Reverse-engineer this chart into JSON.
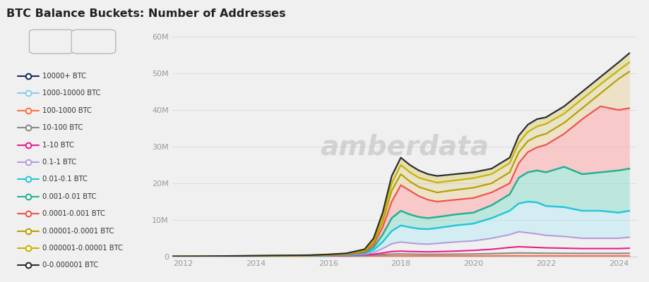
{
  "title": "BTC Balance Buckets: Number of Addresses",
  "background_color": "#f0f0f0",
  "years": [
    2011.5,
    2012,
    2012.5,
    2013,
    2013.5,
    2014,
    2014.5,
    2015,
    2015.5,
    2016,
    2016.5,
    2017,
    2017.25,
    2017.5,
    2017.75,
    2018.0,
    2018.25,
    2018.5,
    2018.75,
    2019,
    2019.5,
    2020,
    2020.5,
    2021,
    2021.25,
    2021.5,
    2021.75,
    2022,
    2022.5,
    2023,
    2023.5,
    2024,
    2024.3
  ],
  "series": {
    "0-0.000001 BTC": {
      "color": "#2d2d2d",
      "lw": 1.6,
      "data": [
        0.05,
        0.08,
        0.1,
        0.15,
        0.2,
        0.25,
        0.3,
        0.35,
        0.4,
        0.6,
        0.9,
        2.0,
        5.0,
        12.0,
        22.0,
        27.0,
        25.0,
        23.5,
        22.5,
        22.0,
        22.5,
        23.0,
        24.0,
        27.0,
        33.0,
        36.0,
        37.5,
        38.0,
        41.0,
        45.0,
        49.0,
        53.0,
        55.5
      ]
    },
    "0.000001-0.00001 BTC": {
      "color": "#c8b400",
      "lw": 1.6,
      "data": [
        0.04,
        0.06,
        0.08,
        0.12,
        0.17,
        0.22,
        0.27,
        0.32,
        0.38,
        0.55,
        0.82,
        1.8,
        4.5,
        11.0,
        20.0,
        25.0,
        23.0,
        21.5,
        20.8,
        20.2,
        20.8,
        21.4,
        22.5,
        25.5,
        31.0,
        34.0,
        35.5,
        36.2,
        39.0,
        43.0,
        47.0,
        50.8,
        53.0
      ]
    },
    "0.00001-0.0001 BTC": {
      "color": "#b8a000",
      "lw": 1.6,
      "data": [
        0.03,
        0.05,
        0.07,
        0.1,
        0.14,
        0.18,
        0.22,
        0.26,
        0.32,
        0.48,
        0.72,
        1.5,
        3.8,
        9.5,
        18.0,
        22.5,
        20.5,
        19.0,
        18.2,
        17.5,
        18.2,
        18.8,
        20.0,
        23.0,
        28.5,
        31.5,
        32.8,
        33.5,
        36.5,
        40.5,
        44.5,
        48.5,
        50.5
      ]
    },
    "0.0001-0.001 BTC": {
      "color": "#ef5350",
      "lw": 1.6,
      "data": [
        0.02,
        0.04,
        0.06,
        0.09,
        0.12,
        0.16,
        0.2,
        0.24,
        0.3,
        0.44,
        0.65,
        1.3,
        3.2,
        8.0,
        15.0,
        19.5,
        18.0,
        16.5,
        15.5,
        15.0,
        15.5,
        16.0,
        17.5,
        20.0,
        25.5,
        28.5,
        29.8,
        30.5,
        33.5,
        37.5,
        41.0,
        40.0,
        40.5
      ]
    },
    "0.001-0.01 BTC": {
      "color": "#26b094",
      "lw": 1.8,
      "data": [
        0.02,
        0.03,
        0.05,
        0.08,
        0.11,
        0.15,
        0.19,
        0.23,
        0.28,
        0.4,
        0.58,
        1.1,
        2.5,
        6.0,
        10.5,
        12.5,
        11.5,
        10.8,
        10.5,
        10.8,
        11.5,
        12.0,
        14.0,
        17.0,
        21.5,
        23.0,
        23.5,
        23.0,
        24.5,
        22.5,
        23.0,
        23.5,
        24.0
      ]
    },
    "0.01-0.1 BTC": {
      "color": "#26c6da",
      "lw": 1.8,
      "data": [
        0.01,
        0.02,
        0.04,
        0.07,
        0.1,
        0.14,
        0.18,
        0.22,
        0.27,
        0.38,
        0.52,
        0.9,
        1.8,
        4.0,
        7.0,
        8.5,
        8.0,
        7.6,
        7.5,
        7.8,
        8.5,
        9.0,
        10.5,
        12.5,
        14.5,
        15.0,
        14.8,
        13.8,
        13.5,
        12.5,
        12.5,
        12.0,
        12.5
      ]
    },
    "0.1-1 BTC": {
      "color": "#b39ddb",
      "lw": 1.5,
      "data": [
        0.005,
        0.01,
        0.02,
        0.04,
        0.06,
        0.09,
        0.12,
        0.15,
        0.2,
        0.28,
        0.4,
        0.65,
        1.1,
        2.2,
        3.5,
        4.0,
        3.7,
        3.5,
        3.4,
        3.6,
        4.0,
        4.3,
        5.0,
        6.0,
        6.8,
        6.5,
        6.2,
        5.8,
        5.5,
        5.0,
        5.0,
        5.0,
        5.3
      ]
    },
    "1-10 BTC": {
      "color": "#e91e8c",
      "lw": 1.5,
      "data": [
        0.003,
        0.006,
        0.01,
        0.025,
        0.04,
        0.06,
        0.08,
        0.1,
        0.14,
        0.2,
        0.28,
        0.45,
        0.65,
        1.0,
        1.4,
        1.5,
        1.4,
        1.35,
        1.3,
        1.35,
        1.5,
        1.7,
        2.0,
        2.5,
        2.7,
        2.6,
        2.5,
        2.4,
        2.3,
        2.2,
        2.2,
        2.2,
        2.3
      ]
    },
    "10-100 BTC": {
      "color": "#888888",
      "lw": 1.5,
      "data": [
        0.002,
        0.004,
        0.008,
        0.02,
        0.03,
        0.05,
        0.065,
        0.08,
        0.1,
        0.14,
        0.2,
        0.3,
        0.42,
        0.55,
        0.7,
        0.72,
        0.68,
        0.64,
        0.62,
        0.63,
        0.68,
        0.72,
        0.82,
        0.95,
        1.0,
        0.98,
        0.95,
        0.92,
        0.9,
        0.88,
        0.88,
        0.88,
        0.9
      ]
    },
    "100-1000 BTC": {
      "color": "#ff7043",
      "lw": 1.5,
      "data": [
        0.001,
        0.002,
        0.004,
        0.008,
        0.012,
        0.018,
        0.024,
        0.03,
        0.04,
        0.055,
        0.075,
        0.1,
        0.13,
        0.18,
        0.22,
        0.22,
        0.2,
        0.19,
        0.18,
        0.18,
        0.19,
        0.2,
        0.22,
        0.25,
        0.26,
        0.25,
        0.24,
        0.23,
        0.22,
        0.21,
        0.21,
        0.21,
        0.22
      ]
    },
    "1000-10000 BTC": {
      "color": "#87ceeb",
      "lw": 1.5,
      "data": [
        0.0005,
        0.001,
        0.002,
        0.003,
        0.004,
        0.006,
        0.008,
        0.01,
        0.012,
        0.015,
        0.018,
        0.022,
        0.026,
        0.03,
        0.035,
        0.033,
        0.03,
        0.028,
        0.027,
        0.028,
        0.03,
        0.032,
        0.035,
        0.037,
        0.037,
        0.036,
        0.035,
        0.034,
        0.033,
        0.032,
        0.031,
        0.031,
        0.032
      ]
    },
    "10000+ BTC": {
      "color": "#1a2e5a",
      "lw": 1.5,
      "data": [
        0.0001,
        0.0002,
        0.0003,
        0.0005,
        0.0007,
        0.001,
        0.0012,
        0.0014,
        0.0016,
        0.002,
        0.0023,
        0.003,
        0.0035,
        0.004,
        0.0045,
        0.0043,
        0.004,
        0.0038,
        0.0037,
        0.0038,
        0.004,
        0.0042,
        0.0045,
        0.0048,
        0.0048,
        0.0047,
        0.0046,
        0.0045,
        0.0044,
        0.0043,
        0.0043,
        0.0043,
        0.0044
      ]
    }
  },
  "fill_bands": [
    {
      "upper": "0-0.000001 BTC",
      "lower": "0.000001-0.00001 BTC",
      "color": "#c8b000",
      "alpha": 0.25
    },
    {
      "upper": "0.000001-0.00001 BTC",
      "lower": "0.00001-0.0001 BTC",
      "color": "#d4c060",
      "alpha": 0.25
    },
    {
      "upper": "0.00001-0.0001 BTC",
      "lower": "0.0001-0.001 BTC",
      "color": "#e8c880",
      "alpha": 0.35
    },
    {
      "upper": "0.0001-0.001 BTC",
      "lower": "0.001-0.01 BTC",
      "color": "#ffaaaa",
      "alpha": 0.55
    },
    {
      "upper": "0.001-0.01 BTC",
      "lower": "0.01-0.1 BTC",
      "color": "#80ddc8",
      "alpha": 0.45
    },
    {
      "upper": "0.01-0.1 BTC",
      "lower": "0.1-1 BTC",
      "color": "#a0e8f8",
      "alpha": 0.35
    }
  ],
  "ylim": [
    0,
    60
  ],
  "yticks": [
    0,
    10,
    20,
    30,
    40,
    50,
    60
  ],
  "ytick_labels": [
    "0",
    "10M",
    "20M",
    "30M",
    "40M",
    "50M",
    "60M"
  ],
  "xlim": [
    2011.7,
    2024.5
  ],
  "xticks": [
    2012,
    2014,
    2016,
    2018,
    2020,
    2022,
    2024
  ],
  "legend_order": [
    "10000+ BTC",
    "1000-10000 BTC",
    "100-1000 BTC",
    "10-100 BTC",
    "1-10 BTC",
    "0.1-1 BTC",
    "0.01-0.1 BTC",
    "0.001-0.01 BTC",
    "0.0001-0.001 BTC",
    "0.00001-0.0001 BTC",
    "0.000001-0.00001 BTC",
    "0-0.000001 BTC"
  ]
}
